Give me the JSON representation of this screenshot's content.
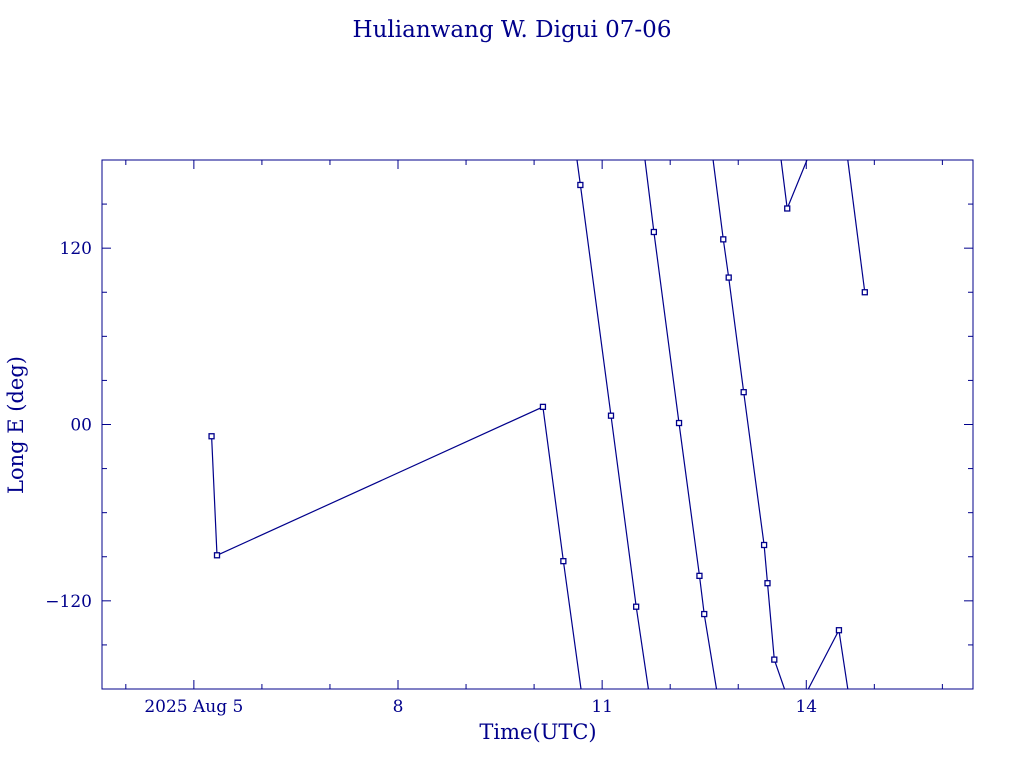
{
  "chart_data": {
    "type": "line",
    "title": "Hulianwang W. Digui 07-06",
    "xlabel": "Time(UTC)",
    "ylabel": "Long E (deg)",
    "color": "#00008b",
    "xlim": [
      3.65,
      16.45
    ],
    "ylim": [
      -180,
      180
    ],
    "x_ticks": [
      {
        "value": 5,
        "label": "2025 Aug  5"
      },
      {
        "value": 8,
        "label": "8"
      },
      {
        "value": 11,
        "label": "11"
      },
      {
        "value": 14,
        "label": "14"
      }
    ],
    "y_ticks": [
      {
        "value": -120,
        "label": "−120"
      },
      {
        "value": 0,
        "label": "00"
      },
      {
        "value": 120,
        "label": "120"
      }
    ],
    "x_minor_step": 1,
    "y_minor_step": 30,
    "grid": false,
    "series": [
      {
        "points": [
          [
            5.26,
            -8
          ],
          [
            5.34,
            -89
          ],
          [
            10.13,
            12
          ],
          [
            10.43,
            -93
          ],
          [
            10.69,
            -180
          ]
        ],
        "markers": [
          0,
          1,
          2,
          3
        ]
      },
      {
        "points": [
          [
            10.63,
            180
          ],
          [
            10.68,
            163
          ],
          [
            11.13,
            6
          ],
          [
            11.5,
            -124
          ],
          [
            11.68,
            -180
          ]
        ],
        "markers": [
          1,
          2,
          3
        ]
      },
      {
        "points": [
          [
            11.63,
            180
          ],
          [
            11.76,
            131
          ],
          [
            12.13,
            1
          ],
          [
            12.43,
            -103
          ],
          [
            12.5,
            -129
          ],
          [
            12.68,
            -180
          ]
        ],
        "markers": [
          1,
          2,
          3,
          4
        ]
      },
      {
        "points": [
          [
            12.63,
            180
          ],
          [
            12.78,
            126
          ],
          [
            12.86,
            100
          ],
          [
            13.08,
            22
          ],
          [
            13.38,
            -82
          ],
          [
            13.43,
            -108
          ],
          [
            13.53,
            -160
          ],
          [
            13.68,
            -180
          ]
        ],
        "markers": [
          1,
          2,
          3,
          4,
          5,
          6
        ]
      },
      {
        "points": [
          [
            13.63,
            180
          ],
          [
            13.72,
            147
          ],
          [
            14.01,
            180
          ]
        ],
        "markers": [
          1
        ]
      },
      {
        "points": [
          [
            14.03,
            -180
          ],
          [
            14.48,
            -140
          ],
          [
            14.61,
            -180
          ]
        ],
        "markers": [
          1
        ]
      },
      {
        "points": [
          [
            14.61,
            180
          ],
          [
            14.86,
            90
          ]
        ],
        "markers": [
          1
        ]
      }
    ]
  }
}
